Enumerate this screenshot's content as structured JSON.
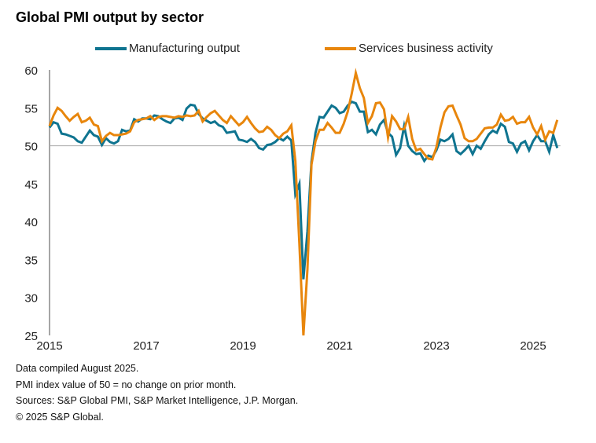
{
  "chart_data": {
    "type": "line",
    "title": "Global PMI output by sector",
    "xlabel": "",
    "ylabel": "",
    "x_start": "2015-01",
    "x_end": "2025-07",
    "frequency": "monthly",
    "xticks": [
      "2015",
      "2017",
      "2019",
      "2021",
      "2023",
      "2025"
    ],
    "yticks": [
      25,
      30,
      35,
      40,
      45,
      50,
      55,
      60
    ],
    "ylim": [
      25,
      60
    ],
    "reference_line": 50,
    "grid": false,
    "legend_position": "top",
    "series": [
      {
        "name": "Manufacturing output",
        "color": "#0f7490",
        "values": [
          52.4,
          53.1,
          52.9,
          51.6,
          51.5,
          51.3,
          51.1,
          50.6,
          50.4,
          51.2,
          52.0,
          51.4,
          51.2,
          50.1,
          51.0,
          50.5,
          50.3,
          50.6,
          52.1,
          51.9,
          52.0,
          53.5,
          53.2,
          53.6,
          53.6,
          53.5,
          54.0,
          53.9,
          53.5,
          53.2,
          53.0,
          53.6,
          53.7,
          53.4,
          54.9,
          55.4,
          55.3,
          54.2,
          53.6,
          53.3,
          53.0,
          53.2,
          52.7,
          52.5,
          51.7,
          51.8,
          51.9,
          50.8,
          50.7,
          50.5,
          50.9,
          50.5,
          49.7,
          49.5,
          50.1,
          50.2,
          50.5,
          51.0,
          50.7,
          51.2,
          50.7,
          43.6,
          45.0,
          32.4,
          38.7,
          47.9,
          51.7,
          53.8,
          53.7,
          54.5,
          55.3,
          55.0,
          54.3,
          54.5,
          55.3,
          55.8,
          55.6,
          54.5,
          54.5,
          51.8,
          52.1,
          51.5,
          52.8,
          53.4,
          51.7,
          51.2,
          48.8,
          49.7,
          52.6,
          50.0,
          49.3,
          48.9,
          49.0,
          48.0,
          48.7,
          48.5,
          49.4,
          50.8,
          50.6,
          50.9,
          51.5,
          49.3,
          48.9,
          49.4,
          50.0,
          48.9,
          50.0,
          49.6,
          50.6,
          51.5,
          52.0,
          51.7,
          52.9,
          52.5,
          50.5,
          50.3,
          49.2,
          50.3,
          50.6,
          49.4,
          50.6,
          51.4,
          50.6,
          50.6,
          49.2,
          51.4,
          49.7
        ]
      },
      {
        "name": "Services business activity",
        "color": "#e8860c",
        "values": [
          52.6,
          54.0,
          55.0,
          54.6,
          53.9,
          53.3,
          53.8,
          54.2,
          53.1,
          53.3,
          53.7,
          52.8,
          52.6,
          50.6,
          51.3,
          51.7,
          51.4,
          51.4,
          51.5,
          51.6,
          51.9,
          53.1,
          53.4,
          53.5,
          53.6,
          53.9,
          53.4,
          53.8,
          53.9,
          53.9,
          53.8,
          53.7,
          53.9,
          53.8,
          54.0,
          53.9,
          54.0,
          54.6,
          53.2,
          53.8,
          54.3,
          54.6,
          54.0,
          53.4,
          53.0,
          53.9,
          53.3,
          52.7,
          53.1,
          53.8,
          53.0,
          52.3,
          51.8,
          51.9,
          52.5,
          52.1,
          51.4,
          51.0,
          51.6,
          51.9,
          52.7,
          48.0,
          37.1,
          25.0,
          33.7,
          47.5,
          50.6,
          52.1,
          52.1,
          53.0,
          52.4,
          51.7,
          51.7,
          52.9,
          54.5,
          56.9,
          59.6,
          57.6,
          56.3,
          53.0,
          53.9,
          55.6,
          55.7,
          54.8,
          51.1,
          53.9,
          53.2,
          52.2,
          52.2,
          53.8,
          50.9,
          49.4,
          49.6,
          48.9,
          48.3,
          48.2,
          49.8,
          52.4,
          54.4,
          55.2,
          55.3,
          54.0,
          52.8,
          51.0,
          50.6,
          50.6,
          50.9,
          51.6,
          52.3,
          52.4,
          52.4,
          52.8,
          54.1,
          53.3,
          53.4,
          53.8,
          52.9,
          53.1,
          53.1,
          53.8,
          52.4,
          51.5,
          52.6,
          50.8,
          51.9,
          51.7,
          53.4
        ]
      }
    ]
  },
  "notes": [
    "Data compiled August 2025.",
    "PMI index value of 50 = no change on prior month.",
    "Sources: S&P Global PMI, S&P Market Intelligence, J.P. Morgan.",
    "© 2025 S&P Global."
  ]
}
